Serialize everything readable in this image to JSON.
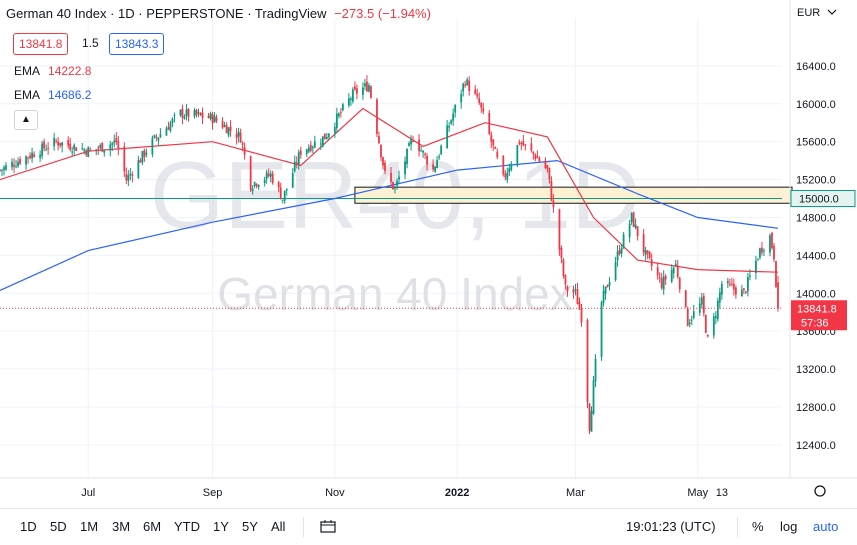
{
  "header": {
    "symbol": "German 40 Index",
    "interval": "1D",
    "exchange": "PEPPERSTONE",
    "platform": "TradingView",
    "change": "−273.5 (−1.94%)",
    "sep": "·"
  },
  "quote": {
    "bid": "13841.8",
    "spread": "1.5",
    "ask": "13843.3"
  },
  "indicators": [
    {
      "name": "EMA",
      "value": "14222.8",
      "color": "#f23645"
    },
    {
      "name": "EMA",
      "value": "14686.2",
      "color": "#2962ff"
    }
  ],
  "currency": "EUR",
  "watermark": {
    "symbol": "GER40, 1D",
    "name": "German 40 Index"
  },
  "price_label": {
    "value": "13841.8",
    "countdown": "57:36",
    "color": "#f23645"
  },
  "level_label": {
    "value": "15000.0"
  },
  "toolbar": {
    "timeframes": [
      "1D",
      "5D",
      "1M",
      "3M",
      "6M",
      "YTD",
      "1Y",
      "5Y",
      "All"
    ],
    "time": "19:01:23 (UTC)",
    "percent": "%",
    "log": "log",
    "auto": "auto"
  },
  "chart_data": {
    "type": "candlestick",
    "y_ticks": [
      "16400.0",
      "16000.0",
      "15600.0",
      "15200.0",
      "14800.0",
      "14400.0",
      "14000.0",
      "13600.0",
      "13200.0",
      "12800.0",
      "12400.0"
    ],
    "y_tick_values": [
      16400,
      16000,
      15600,
      15200,
      14800,
      14400,
      14000,
      13600,
      13200,
      12800,
      12400
    ],
    "ylim": [
      12050,
      16800
    ],
    "x_ticks": [
      "Jul",
      "Sep",
      "Nov",
      "2022",
      "Mar",
      "May",
      "13"
    ],
    "x_tick_dates": [
      "2021-07-01",
      "2021-09-01",
      "2021-11-01",
      "2022-01-01",
      "2022-03-01",
      "2022-05-01",
      "2022-05-13"
    ],
    "xlim": [
      "2021-05-18",
      "2022-06-12"
    ],
    "close_series": [
      [
        "2021-05-18",
        15300
      ],
      [
        "2021-06-15",
        15600
      ],
      [
        "2021-07-02",
        15500
      ],
      [
        "2021-07-15",
        15600
      ],
      [
        "2021-07-20",
        15200
      ],
      [
        "2021-08-02",
        15600
      ],
      [
        "2021-08-16",
        15900
      ],
      [
        "2021-09-01",
        15850
      ],
      [
        "2021-09-15",
        15650
      ],
      [
        "2021-09-20",
        15150
      ],
      [
        "2021-09-30",
        15250
      ],
      [
        "2021-10-06",
        15000
      ],
      [
        "2021-10-15",
        15500
      ],
      [
        "2021-10-27",
        15650
      ],
      [
        "2021-11-10",
        16100
      ],
      [
        "2021-11-18",
        16200
      ],
      [
        "2021-11-26",
        15250
      ],
      [
        "2021-12-01",
        15100
      ],
      [
        "2021-12-10",
        15650
      ],
      [
        "2021-12-20",
        15300
      ],
      [
        "2022-01-05",
        16250
      ],
      [
        "2022-01-12",
        16000
      ],
      [
        "2022-01-24",
        15200
      ],
      [
        "2022-02-01",
        15600
      ],
      [
        "2022-02-09",
        15450
      ],
      [
        "2022-02-15",
        15300
      ],
      [
        "2022-02-24",
        14050
      ],
      [
        "2022-03-01",
        14000
      ],
      [
        "2022-03-04",
        13750
      ],
      [
        "2022-03-08",
        12600
      ],
      [
        "2022-03-14",
        13900
      ],
      [
        "2022-03-21",
        14350
      ],
      [
        "2022-03-29",
        14800
      ],
      [
        "2022-04-05",
        14400
      ],
      [
        "2022-04-13",
        14100
      ],
      [
        "2022-04-20",
        14300
      ],
      [
        "2022-04-26",
        13700
      ],
      [
        "2022-05-03",
        13900
      ],
      [
        "2022-05-06",
        13500
      ],
      [
        "2022-05-10",
        13800
      ],
      [
        "2022-05-13",
        14100
      ],
      [
        "2022-05-24",
        14000
      ],
      [
        "2022-06-01",
        14450
      ],
      [
        "2022-06-06",
        14600
      ],
      [
        "2022-06-08",
        14400
      ],
      [
        "2022-06-10",
        13841.8
      ]
    ],
    "ema_fast": [
      [
        "2021-05-18",
        15200
      ],
      [
        "2021-07-01",
        15500
      ],
      [
        "2021-09-01",
        15600
      ],
      [
        "2021-10-15",
        15350
      ],
      [
        "2021-11-15",
        15950
      ],
      [
        "2021-12-15",
        15550
      ],
      [
        "2022-01-15",
        15800
      ],
      [
        "2022-02-15",
        15650
      ],
      [
        "2022-03-10",
        14800
      ],
      [
        "2022-04-01",
        14350
      ],
      [
        "2022-05-01",
        14250
      ],
      [
        "2022-06-10",
        14222.8
      ]
    ],
    "ema_slow": [
      [
        "2021-05-18",
        14030
      ],
      [
        "2021-07-01",
        14450
      ],
      [
        "2021-09-01",
        14750
      ],
      [
        "2021-11-01",
        15000
      ],
      [
        "2022-01-01",
        15300
      ],
      [
        "2022-02-20",
        15400
      ],
      [
        "2022-04-01",
        15050
      ],
      [
        "2022-05-01",
        14800
      ],
      [
        "2022-06-10",
        14686.2
      ]
    ],
    "hline": 15000.0,
    "zone": [
      14950,
      15120
    ],
    "zone_start": "2021-11-11",
    "zone_end": "2022-06-17",
    "last_price": 13841.8,
    "colors": {
      "up": "#089981",
      "down": "#f23645",
      "ema_fast": "#f23645",
      "ema_slow": "#2962ff",
      "zone": "#fdf1d3"
    }
  }
}
